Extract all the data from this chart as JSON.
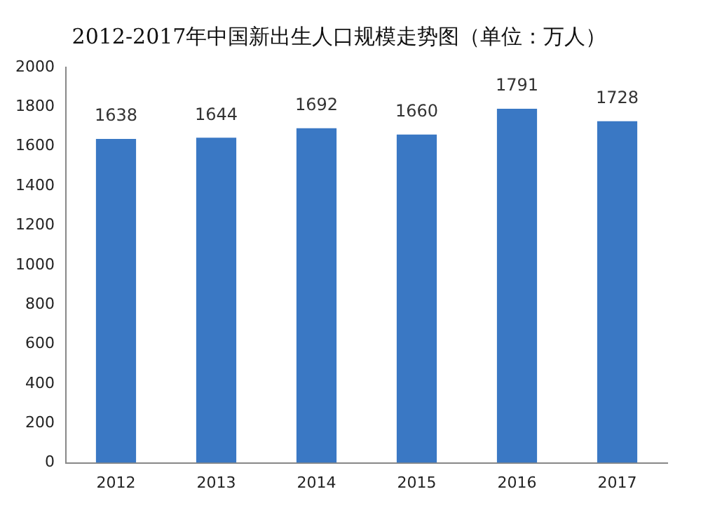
{
  "chart_data": {
    "type": "bar",
    "title": "2012-2017年中国新出生人口规模走势图（单位：万人）",
    "categories": [
      "2012",
      "2013",
      "2014",
      "2015",
      "2016",
      "2017"
    ],
    "values": [
      1638,
      1644,
      1692,
      1660,
      1791,
      1728
    ],
    "data_labels": true,
    "color": "#3a78c4",
    "ylim": [
      0,
      2000
    ],
    "yticks": [
      0,
      200,
      400,
      600,
      800,
      1000,
      1200,
      1400,
      1600,
      1800,
      2000
    ],
    "grid": false,
    "legend": false
  }
}
